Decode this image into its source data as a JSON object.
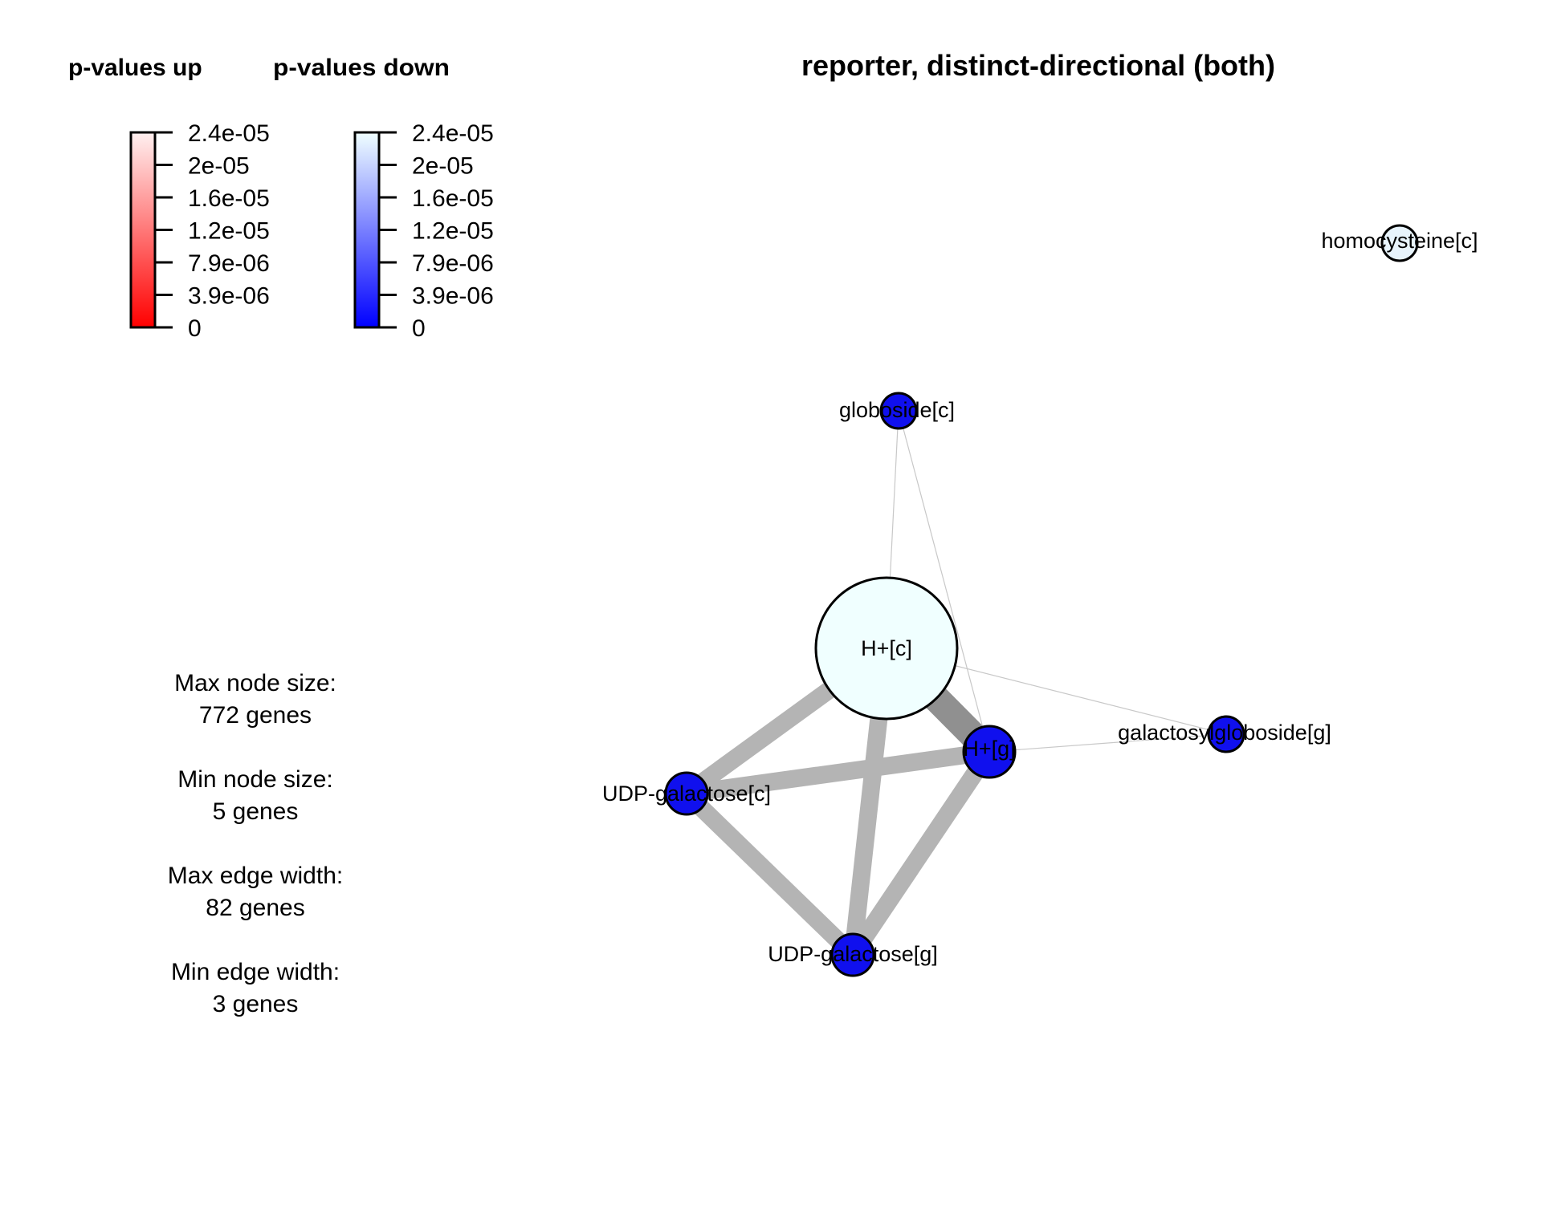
{
  "title": "reporter, distinct-directional (both)",
  "legend_up": {
    "title": "p-values up",
    "ticks": [
      "2.4e-05",
      "2e-05",
      "1.6e-05",
      "1.2e-05",
      "7.9e-06",
      "3.9e-06",
      "0"
    ],
    "color_low": "#ff0000",
    "color_high": "#fff0f0"
  },
  "legend_down": {
    "title": "p-values down",
    "ticks": [
      "2.4e-05",
      "2e-05",
      "1.6e-05",
      "1.2e-05",
      "7.9e-06",
      "3.9e-06",
      "0"
    ],
    "color_low": "#0000ff",
    "color_high": "#f0ffff"
  },
  "stats": {
    "max_node_label": "Max node size:",
    "max_node_value": "772 genes",
    "min_node_label": "Min node size:",
    "min_node_value": "5 genes",
    "max_edge_label": "Max edge width:",
    "max_edge_value": "82 genes",
    "min_edge_label": "Min edge width:",
    "min_edge_value": "3 genes"
  },
  "nodes": [
    {
      "id": "hc",
      "label": "H+[c]",
      "fill": "#f0ffff"
    },
    {
      "id": "hg",
      "label": "H+[g]",
      "fill": "#1010ee"
    },
    {
      "id": "udpc",
      "label": "UDP-galactose[c]",
      "fill": "#1010ee"
    },
    {
      "id": "udpg",
      "label": "UDP-galactose[g]",
      "fill": "#1010ee"
    },
    {
      "id": "globc",
      "label": "globoside[c]",
      "fill": "#1010ee"
    },
    {
      "id": "galg",
      "label": "galactosylgloboside[g]",
      "fill": "#1010ee"
    },
    {
      "id": "homoc",
      "label": "homocysteine[c]",
      "fill": "#e8f4fc"
    }
  ],
  "edges": [
    {
      "source": "hc",
      "target": "hg"
    },
    {
      "source": "hc",
      "target": "udpc"
    },
    {
      "source": "hc",
      "target": "udpg"
    },
    {
      "source": "udpc",
      "target": "hg"
    },
    {
      "source": "udpc",
      "target": "udpg"
    },
    {
      "source": "udpg",
      "target": "hg"
    },
    {
      "source": "globc",
      "target": "hc"
    },
    {
      "source": "globc",
      "target": "hg"
    },
    {
      "source": "hc",
      "target": "galg"
    },
    {
      "source": "hg",
      "target": "galg"
    }
  ]
}
